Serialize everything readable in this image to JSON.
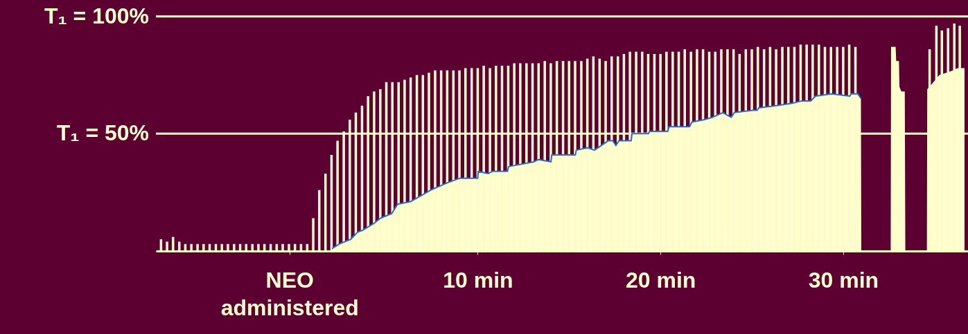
{
  "chart_data": {
    "type": "bar",
    "xlim": [
      -7.42,
      36.64
    ],
    "ylim": [
      0,
      107
    ],
    "xticks": [
      {
        "value": -0.3,
        "label": "NEO\nadministered"
      },
      {
        "value": 10,
        "label": "10 min"
      },
      {
        "value": 20,
        "label": "20 min"
      },
      {
        "value": 30,
        "label": "30 min"
      }
    ],
    "tick_labels": "x",
    "grid": false,
    "ref_lines": [
      {
        "axis": "y",
        "value": 100,
        "label": "T₁ = 100%",
        "color": "#fffacd"
      },
      {
        "axis": "y",
        "value": 50,
        "label": "T₁ = 50%",
        "color": "#fffacd"
      }
    ],
    "series": [
      {
        "color": "#fffacd",
        "x": [
          -7.33,
          -7,
          -6.67,
          -6.33,
          -6,
          -5.67,
          -5.33,
          -5,
          -4.67,
          -4.33,
          -4,
          -3.67,
          -3.33,
          -3,
          -2.67,
          -2.33,
          -2,
          -1.67,
          -1.33,
          -1,
          -0.67,
          -0.33,
          0,
          0.33,
          0.67,
          1,
          1.33,
          1.67,
          2,
          2.33,
          2.67,
          3,
          3.33,
          3.67,
          4,
          4.33,
          4.67,
          5,
          5.33,
          5.67,
          6,
          6.33,
          6.67,
          7,
          7.33,
          7.67,
          8,
          8.33,
          8.67,
          9,
          9.33,
          9.67,
          10,
          10.33,
          10.67,
          11,
          11.33,
          11.67,
          12,
          12.33,
          12.67,
          13,
          13.33,
          13.67,
          14,
          14.33,
          14.67,
          15,
          15.33,
          15.67,
          16,
          16.33,
          16.67,
          17,
          17.33,
          17.67,
          18,
          18.33,
          18.67,
          19,
          19.33,
          19.67,
          20,
          20.33,
          20.67,
          21,
          21.33,
          21.67,
          22,
          22.33,
          22.67,
          23,
          23.33,
          23.67,
          24,
          24.33,
          24.67,
          25,
          25.33,
          25.67,
          26,
          26.33,
          26.67,
          27,
          27.33,
          27.67,
          28,
          28.33,
          28.67,
          29,
          29.33,
          29.67,
          30,
          30.33,
          30.67,
          34.73,
          35.1,
          35.4,
          35.74,
          36.08,
          36.38
        ],
        "values": [
          5,
          4,
          6,
          4,
          3,
          3,
          3,
          3,
          3,
          3,
          3,
          3,
          3,
          3,
          3,
          3,
          3,
          3,
          3,
          3,
          3,
          3,
          3,
          3,
          3,
          14,
          26,
          33,
          41,
          47,
          51,
          56,
          59,
          62,
          66,
          68,
          69,
          72,
          72,
          72,
          73,
          74,
          75,
          75,
          76,
          77,
          77,
          77,
          77,
          77,
          78,
          78,
          78,
          79,
          78,
          79,
          79,
          79,
          80,
          80,
          80,
          80,
          80,
          81,
          80,
          81,
          81,
          81,
          81,
          81,
          82,
          83,
          82,
          81,
          83,
          83,
          84,
          85,
          85,
          85,
          84,
          84,
          84,
          85,
          85,
          85,
          86,
          85,
          86,
          86,
          85,
          85,
          86,
          86,
          86,
          84,
          86,
          86,
          87,
          86,
          87,
          86,
          87,
          87,
          87,
          88,
          88,
          88,
          88,
          87,
          87,
          87,
          87,
          88,
          87,
          86,
          96,
          94,
          95,
          97,
          96
        ]
      },
      {
        "type": "area",
        "color": "#ffffcc",
        "x": [
          2.02,
          2.42,
          3.05,
          3.42,
          3.74,
          4.36,
          4.68,
          5.3,
          5.62,
          6.3,
          6.99,
          7.43,
          8.31,
          9.0,
          10.0,
          10.03,
          10.56,
          10.82,
          11.63,
          11.69,
          13.07,
          13.32,
          14.01,
          14.05,
          15.35,
          15.39,
          16.02,
          16.39,
          17.14,
          17.39,
          17.56,
          17.73,
          18.4,
          18.44,
          19.34,
          19.4,
          20.4,
          20.47,
          21.6,
          21.72,
          22.41,
          22.85,
          23.41,
          23.87,
          24.04,
          25.04,
          25.29,
          25.38,
          26.35,
          27.23,
          27.73,
          28.23,
          28.48,
          29.36,
          30.36,
          30.43,
          30.8,
          30.97,
          30.99
        ],
        "values": [
          1,
          3,
          5,
          8,
          9,
          12,
          14,
          16,
          20,
          21,
          24,
          26,
          29,
          31,
          31,
          34,
          33,
          34,
          34,
          36,
          38,
          39,
          38,
          41,
          41,
          43,
          44,
          43,
          47,
          47,
          45,
          47,
          47,
          50,
          50,
          51,
          51,
          53,
          53,
          55,
          56,
          57,
          59,
          57,
          59,
          60,
          60,
          61,
          62,
          63,
          64,
          64,
          66,
          67,
          66,
          67,
          67,
          65,
          0
        ]
      },
      {
        "type": "line",
        "color": "#1f6fd0",
        "x": [
          2.02,
          2.42,
          3.05,
          3.42,
          3.74,
          4.36,
          4.68,
          5.3,
          5.62,
          6.3,
          6.99,
          7.43,
          8.31,
          9.0,
          10.0,
          10.03,
          10.56,
          10.82,
          11.63,
          11.69,
          13.07,
          13.32,
          14.01,
          14.05,
          15.35,
          15.39,
          16.02,
          16.39,
          17.14,
          17.39,
          17.56,
          17.73,
          18.4,
          18.44,
          19.34,
          19.4,
          20.4,
          20.47,
          21.6,
          21.72,
          22.41,
          22.85,
          23.41,
          23.87,
          24.04,
          25.04,
          25.29,
          25.38,
          26.35,
          27.23,
          27.73,
          28.23,
          28.48,
          29.36,
          30.36,
          30.43,
          30.8,
          30.97
        ],
        "values": [
          1,
          3,
          5,
          8,
          9,
          12,
          14,
          16,
          20,
          21,
          24,
          26,
          29,
          31,
          31,
          34,
          33,
          34,
          34,
          36,
          38,
          39,
          38,
          41,
          41,
          43,
          44,
          43,
          47,
          47,
          45,
          47,
          47,
          50,
          50,
          51,
          51,
          53,
          53,
          55,
          56,
          57,
          59,
          57,
          59,
          60,
          60,
          61,
          62,
          63,
          64,
          64,
          66,
          67,
          66,
          67,
          67,
          65
        ]
      },
      {
        "type": "area",
        "color": "#ffffcc",
        "x": [
          32.6,
          32.62,
          32.87,
          32.9,
          33.05,
          33.08,
          33.18,
          33.37,
          33.4,
          34.58,
          34.6,
          34.94,
          35.26,
          35.64,
          36.01,
          36.26,
          36.64
        ],
        "values": [
          0,
          87,
          87,
          81,
          81,
          70,
          68,
          68,
          0,
          0,
          69,
          72,
          75,
          76,
          77,
          78,
          78
        ]
      }
    ]
  }
}
